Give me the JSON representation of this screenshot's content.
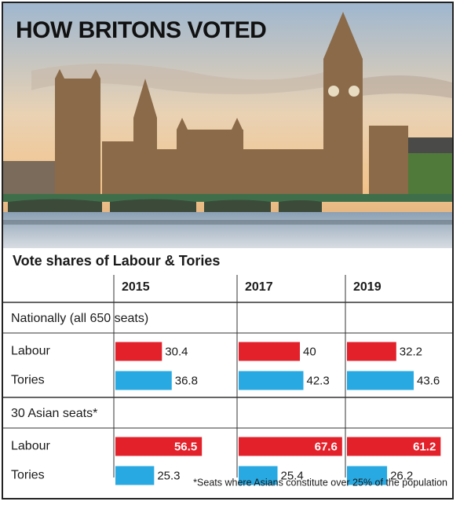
{
  "chart_data": {
    "type": "bar",
    "title": "HOW BRITONS VOTED",
    "subtitle": "Vote shares of Labour & Tories",
    "categories": [
      "2015",
      "2017",
      "2019"
    ],
    "panels": [
      {
        "title": "Nationally (all 650 seats)",
        "series": [
          {
            "name": "Labour",
            "color": "#e3212b",
            "values": [
              30.4,
              40,
              32.2
            ]
          },
          {
            "name": "Tories",
            "color": "#29a9e1",
            "values": [
              36.8,
              42.3,
              43.6
            ]
          }
        ]
      },
      {
        "title": "30 Asian seats*",
        "series": [
          {
            "name": "Labour",
            "color": "#e3212b",
            "values": [
              56.5,
              67.6,
              61.2
            ]
          },
          {
            "name": "Tories",
            "color": "#29a9e1",
            "values": [
              25.3,
              25.4,
              26.2
            ]
          }
        ]
      }
    ],
    "note": "*Seats where Asians constitute over 25% of the population"
  }
}
